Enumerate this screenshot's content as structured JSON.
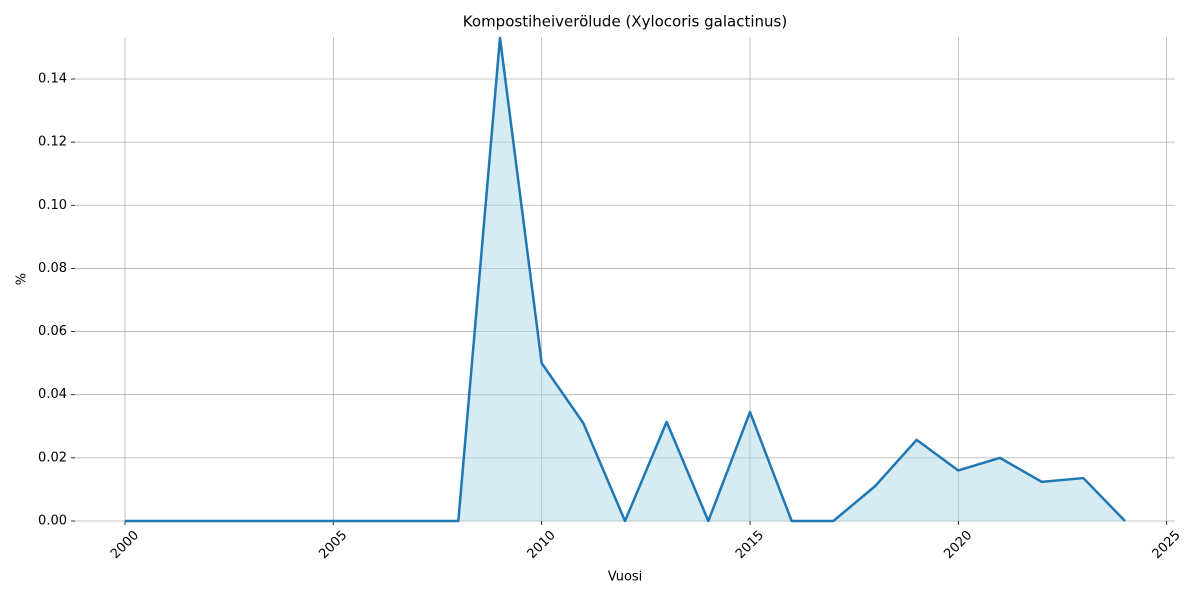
{
  "chart_data": {
    "type": "line",
    "title": "Kompostiheiverölude (Xylocoris galactinus)",
    "x_label": "Vuosi",
    "y_label": "%",
    "x": [
      2000,
      2001,
      2002,
      2003,
      2004,
      2005,
      2006,
      2007,
      2008,
      2009,
      2010,
      2011,
      2012,
      2013,
      2014,
      2015,
      2016,
      2017,
      2018,
      2019,
      2020,
      2021,
      2022,
      2023,
      2024
    ],
    "series": [
      {
        "name": "Kompostiheiverölude",
        "color": "#1f77b4",
        "fill_color": "#add8e6",
        "values": [
          0,
          0,
          0,
          0,
          0,
          0,
          0,
          0,
          0,
          0.153,
          0.05,
          0.031,
          0,
          0.0314,
          0,
          0.0345,
          0,
          0,
          0.011,
          0.0257,
          0.016,
          0.02,
          0.0124,
          0.0136,
          0
        ]
      }
    ],
    "xlim": [
      1998.8,
      2025.2
    ],
    "xticks": [
      2000,
      2005,
      2010,
      2015,
      2020,
      2025
    ],
    "ylim": [
      0,
      0.1533
    ],
    "yticks": [
      {
        "value": 0,
        "label": "0.00"
      },
      {
        "value": 0.02,
        "label": "0.02"
      },
      {
        "value": 0.04,
        "label": "0.04"
      },
      {
        "value": 0.06,
        "label": "0.06"
      },
      {
        "value": 0.08,
        "label": "0.08"
      },
      {
        "value": 0.1,
        "label": "0.10"
      },
      {
        "value": 0.12,
        "label": "0.12"
      },
      {
        "value": 0.14,
        "label": "0.14"
      }
    ],
    "grid": true
  }
}
